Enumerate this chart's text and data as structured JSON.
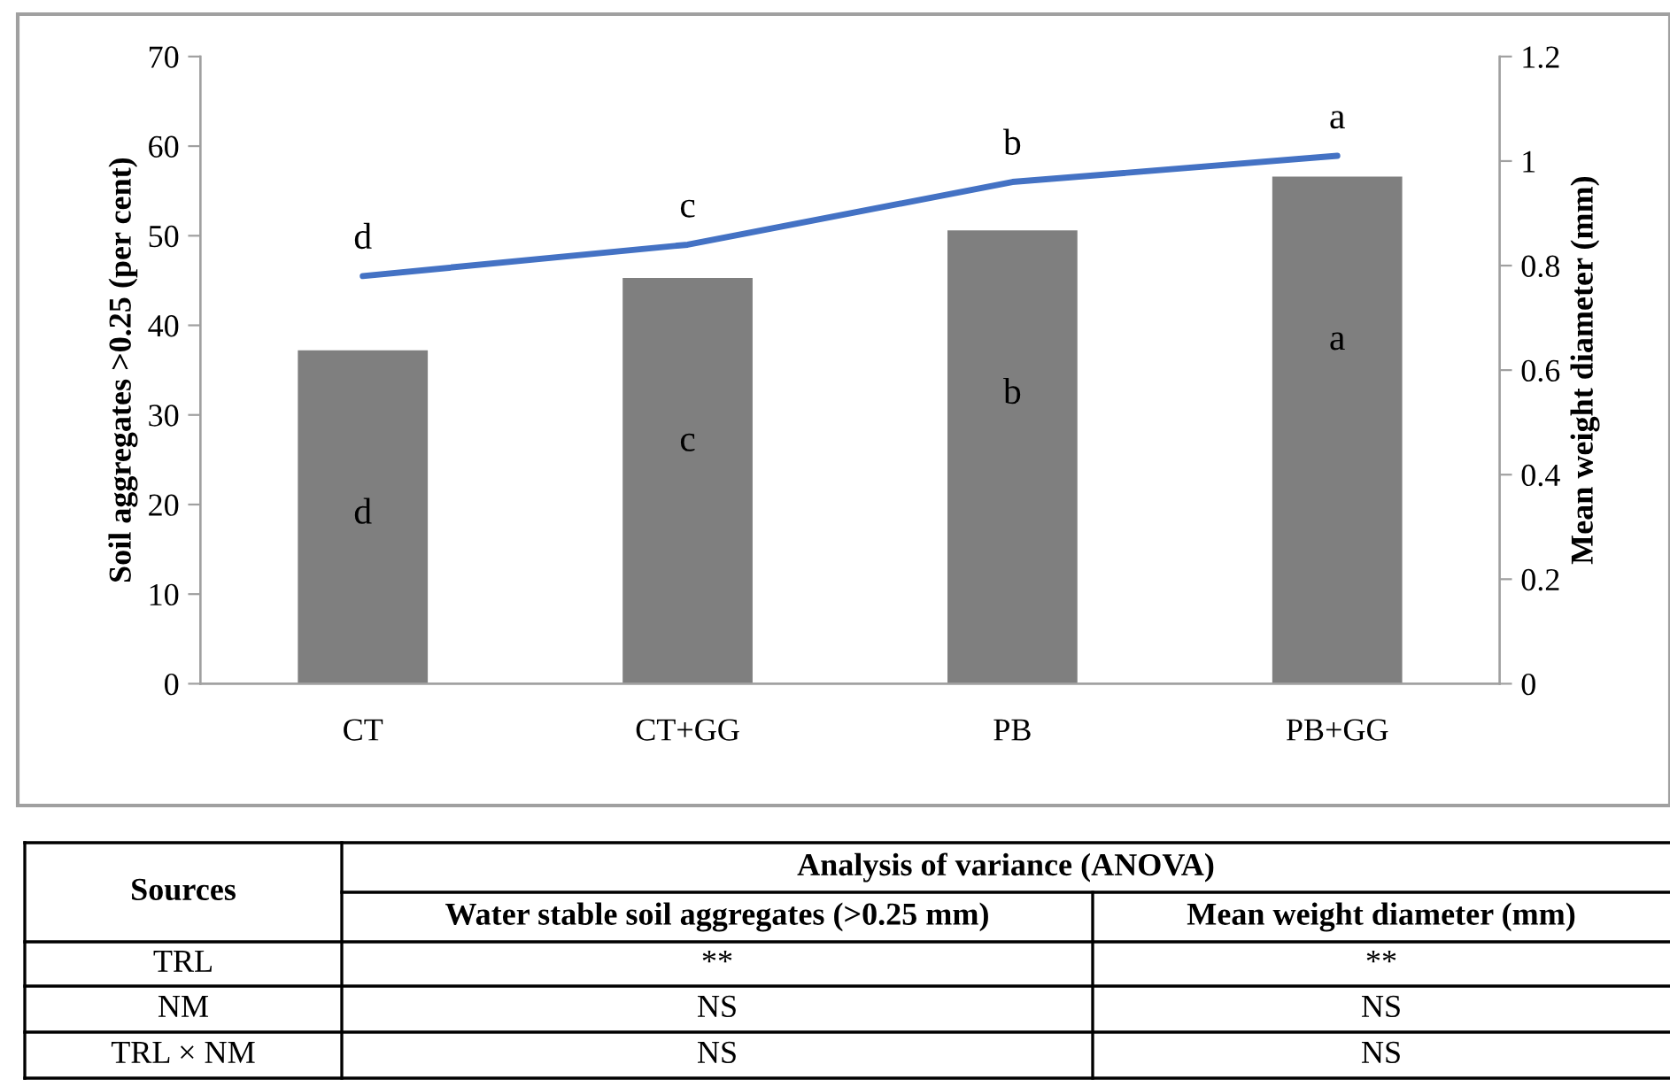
{
  "chart_data": {
    "type": "bar",
    "ylabel": "Soil aggregates >0.25 (per cent)",
    "y2label": "Mean weight diameter (mm)",
    "categories": [
      "CT",
      "CT+GG",
      "PB",
      "PB+GG"
    ],
    "series": [
      {
        "color": "#7f7f7f",
        "values": [
          37.2,
          45.3,
          50.6,
          56.6
        ],
        "value_labels": [
          "d",
          "c",
          "b",
          "a"
        ]
      },
      {
        "type": "line",
        "axis": "y2",
        "color": "#4472c4",
        "values": [
          0.78,
          0.84,
          0.96,
          1.01
        ],
        "value_labels": [
          "d",
          "c",
          "b",
          "a"
        ]
      }
    ],
    "ylim": [
      0,
      70
    ],
    "yticks": [
      0,
      10,
      20,
      30,
      40,
      50,
      60,
      70
    ],
    "y2lim": [
      0,
      1.2
    ],
    "y2ticks": [
      0,
      0.2,
      0.4,
      0.6,
      0.8,
      1,
      1.2
    ],
    "grid": false,
    "legend": false,
    "marker": "none",
    "line_style": "solid",
    "annotations": [
      "Sources",
      "Analysis of variance (ANOVA)",
      "Water stable soil aggregates (>0.25 mm)",
      "Mean weight diameter (mm)",
      "TRL",
      "**",
      "**",
      "NM",
      "NS",
      "NS",
      "TRL × NM",
      "NS",
      "NS"
    ]
  }
}
